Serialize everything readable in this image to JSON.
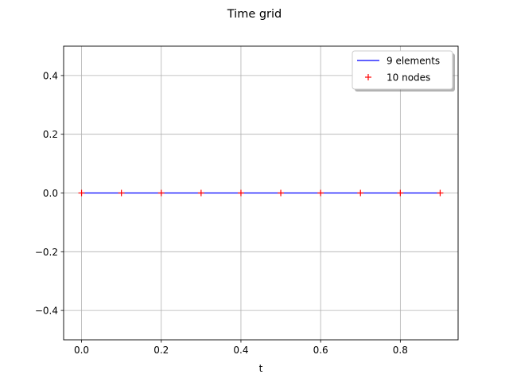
{
  "chart_data": {
    "type": "line",
    "title": "Time grid",
    "xlabel": "t",
    "ylabel": "",
    "xlim": [
      -0.045,
      0.945
    ],
    "ylim": [
      -0.5,
      0.5
    ],
    "xticks": [
      0.0,
      0.2,
      0.4,
      0.6,
      0.8
    ],
    "xtick_labels": [
      "0.0",
      "0.2",
      "0.4",
      "0.6",
      "0.8"
    ],
    "yticks": [
      -0.4,
      -0.2,
      0.0,
      0.2,
      0.4
    ],
    "ytick_labels": [
      "−0.4",
      "−0.2",
      "0.0",
      "0.2",
      "0.4"
    ],
    "grid": true,
    "legend_position": "top-right",
    "series": [
      {
        "name": "9 elements",
        "kind": "line",
        "color": "#0000ff",
        "x": [
          0.0,
          0.1,
          0.2,
          0.3,
          0.4,
          0.5,
          0.6,
          0.7,
          0.8,
          0.9
        ],
        "y": [
          0,
          0,
          0,
          0,
          0,
          0,
          0,
          0,
          0,
          0
        ]
      },
      {
        "name": "10 nodes",
        "kind": "markers",
        "marker": "+",
        "color": "#ff0000",
        "x": [
          0.0,
          0.1,
          0.2,
          0.3,
          0.4,
          0.5,
          0.6,
          0.7,
          0.8,
          0.9
        ],
        "y": [
          0,
          0,
          0,
          0,
          0,
          0,
          0,
          0,
          0,
          0
        ]
      }
    ]
  }
}
